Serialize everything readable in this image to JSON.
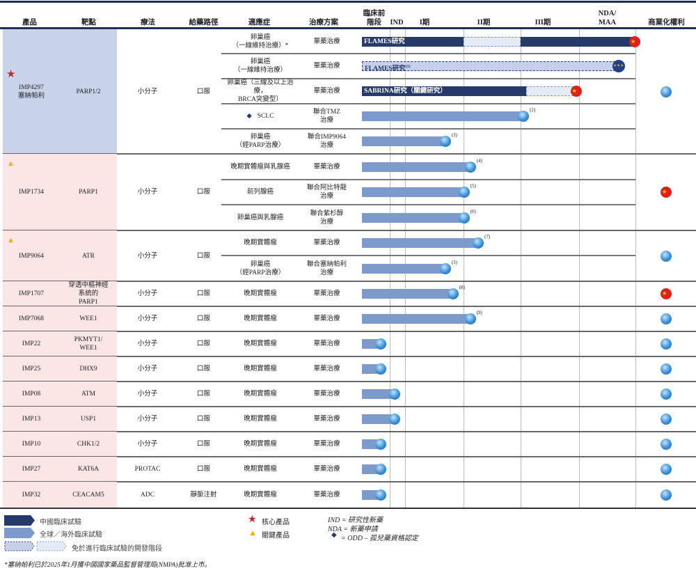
{
  "header": {
    "product": "產品",
    "target": "靶點",
    "modality": "療法",
    "route": "給藥路徑",
    "indication": "適應症",
    "regimen": "治療方案",
    "preclinical": "臨床前\n階段",
    "ind": "IND",
    "p1": "I期",
    "p2": "II期",
    "p3": "III期",
    "nda": "NDA/\nMAA",
    "commercial": "商業化權利"
  },
  "phases": [
    "臨床前階段",
    "IND",
    "I期",
    "II期",
    "III期",
    "NDA/MAA"
  ],
  "colors": {
    "china_trial": "#253a6b",
    "global_trial": "#7c9acb",
    "waived_dark": "#c6d0ea",
    "waived_light": "#e4ebf6",
    "core_star": "#c0262d",
    "key_triangle": "#f2b300",
    "product_bg_core": "#c8d3ea",
    "product_bg_other": "#fbe5e5"
  },
  "products": [
    {
      "name": "IMP4297\n塞納帕利",
      "marker": "star",
      "target": "PARP1/2",
      "modality": "小分子",
      "route": "口服",
      "commercial": "globe",
      "rows": [
        0,
        1,
        2,
        3,
        4
      ]
    },
    {
      "name": "IMP1734",
      "marker": "triangle",
      "target": "PARP1",
      "modality": "小分子",
      "route": "口服",
      "commercial": "china",
      "rows": [
        5,
        6,
        7
      ]
    },
    {
      "name": "IMP9064",
      "marker": "triangle",
      "target": "ATR",
      "modality": "小分子",
      "route": "口服",
      "commercial": "globe",
      "rows": [
        8,
        9
      ]
    },
    {
      "name": "IMP1707",
      "target": "穿透中樞神經\n系統的\nPARP1",
      "modality": "小分子",
      "route": "口服",
      "commercial": "china",
      "rows": [
        10
      ]
    },
    {
      "name": "IMP7068",
      "target": "WEE1",
      "modality": "小分子",
      "route": "口服",
      "commercial": "globe",
      "rows": [
        11
      ]
    },
    {
      "name": "IMP22",
      "target": "PKMYT1/\nWEE1",
      "modality": "小分子",
      "route": "口服",
      "commercial": "globe",
      "rows": [
        12
      ]
    },
    {
      "name": "IMP25",
      "target": "DHX9",
      "modality": "小分子",
      "route": "口服",
      "commercial": "globe",
      "rows": [
        13
      ]
    },
    {
      "name": "IMP08",
      "target": "ATM",
      "modality": "小分子",
      "route": "口服",
      "commercial": "globe",
      "rows": [
        14
      ]
    },
    {
      "name": "IMP13",
      "target": "USP1",
      "modality": "小分子",
      "route": "口服",
      "commercial": "globe",
      "rows": [
        15
      ]
    },
    {
      "name": "IMP10",
      "target": "CHK1/2",
      "modality": "小分子",
      "route": "口服",
      "commercial": "globe",
      "rows": [
        16
      ]
    },
    {
      "name": "IMP27",
      "target": "KAT6A",
      "modality": "PROTAC",
      "route": "口服",
      "commercial": "globe",
      "rows": [
        17
      ]
    },
    {
      "name": "IMP32",
      "target": "CEACAM5",
      "modality": "ADC",
      "route": "靜脈注射",
      "commercial": "globe",
      "rows": [
        18
      ]
    }
  ],
  "rows": [
    {
      "indication": "卵巢癌\n（一線維持治療）*",
      "regimen": "單藥治療",
      "segments": [
        {
          "type": "china",
          "from": 0,
          "to": 3,
          "label": "FLAMES研究"
        },
        {
          "type": "waived_light",
          "from": 3,
          "to": 4
        },
        {
          "type": "china",
          "from": 4,
          "to": 6
        }
      ],
      "end_icon": "china"
    },
    {
      "indication": "卵巢癌\n（一線維持治療）",
      "regimen": "單藥治療",
      "segments": [
        {
          "type": "waived_dark",
          "from": 0,
          "to": 5.7,
          "label": "FLAMES研究",
          "note": "(1)"
        }
      ],
      "end_icon": "eu"
    },
    {
      "indication": "卵巢癌（三線及以上治療，\nBRCA突變型）",
      "regimen": "單藥治療",
      "segments": [
        {
          "type": "china",
          "from": 0,
          "to": 4.1,
          "label": "SABRINA研究（關鍵研究）"
        },
        {
          "type": "waived_light",
          "from": 4.1,
          "to": 4.96
        }
      ],
      "end_icon": "china"
    },
    {
      "indication": "SCLC",
      "odd": true,
      "regimen": "聯合TMZ\n治療",
      "segments": [
        {
          "type": "global",
          "from": 0,
          "to": 4.06
        }
      ],
      "end_icon": "globe",
      "note": "(2)"
    },
    {
      "indication": "卵巢癌\n（經PARP治療）",
      "regimen": "聯合IMP9064\n治療",
      "segments": [
        {
          "type": "global",
          "from": 0,
          "to": 2.7
        }
      ],
      "end_icon": "globe",
      "note": "(3)"
    },
    {
      "indication": "晚期實體瘤與乳腺癌",
      "regimen": "單藥治療",
      "segments": [
        {
          "type": "global",
          "from": 0,
          "to": 3.13
        }
      ],
      "end_icon": "globe",
      "note": "(4)"
    },
    {
      "indication": "前列腺癌",
      "regimen": "聯合阿比特龍\n治療",
      "segments": [
        {
          "type": "global",
          "from": 0,
          "to": 3.02
        }
      ],
      "end_icon": "globe",
      "note": "(5)"
    },
    {
      "indication": "卵巢癌與乳腺癌",
      "regimen": "聯合紫杉醇\n治療",
      "segments": [
        {
          "type": "global",
          "from": 0,
          "to": 3.02
        }
      ],
      "end_icon": "globe",
      "note": "(6)"
    },
    {
      "indication": "晚期實體瘤",
      "regimen": "單藥治療",
      "segments": [
        {
          "type": "global",
          "from": 0,
          "to": 3.27
        }
      ],
      "end_icon": "globe",
      "note": "(7)"
    },
    {
      "indication": "卵巢癌\n（經PARP治療）",
      "regimen": "聯合塞納帕利\n治療",
      "segments": [
        {
          "type": "global",
          "from": 0,
          "to": 2.7
        }
      ],
      "end_icon": "globe",
      "note": "(3)"
    },
    {
      "indication": "晚期實體瘤",
      "regimen": "單藥治療",
      "segments": [
        {
          "type": "global",
          "from": 0,
          "to": 2.83
        }
      ],
      "end_icon": "globe",
      "note": "(8)"
    },
    {
      "indication": "晚期實體瘤",
      "regimen": "單藥治療",
      "segments": [
        {
          "type": "global",
          "from": 0,
          "to": 3.13
        }
      ],
      "end_icon": "globe",
      "note": "(9)"
    },
    {
      "indication": "晚期實體瘤",
      "regimen": "單藥治療",
      "segments": [
        {
          "type": "global",
          "from": 0,
          "to": 0.71
        }
      ],
      "end_icon": "globe"
    },
    {
      "indication": "晚期實體瘤",
      "regimen": "單藥治療",
      "segments": [
        {
          "type": "global",
          "from": 0,
          "to": 0.71
        }
      ],
      "end_icon": "globe"
    },
    {
      "indication": "晚期實體瘤",
      "regimen": "單藥治療",
      "segments": [
        {
          "type": "global",
          "from": 0,
          "to": 1.36
        }
      ],
      "end_icon": "globe"
    },
    {
      "indication": "晚期實體瘤",
      "regimen": "單藥治療",
      "segments": [
        {
          "type": "global",
          "from": 0,
          "to": 1.36
        }
      ],
      "end_icon": "globe"
    },
    {
      "indication": "晚期實體瘤",
      "regimen": "單藥治療",
      "segments": [
        {
          "type": "global",
          "from": 0,
          "to": 0.71
        }
      ],
      "end_icon": "globe"
    },
    {
      "indication": "晚期實體瘤",
      "regimen": "單藥治療",
      "segments": [
        {
          "type": "global",
          "from": 0,
          "to": 0.71
        }
      ],
      "end_icon": "globe"
    },
    {
      "indication": "晚期實體瘤",
      "regimen": "單藥治療",
      "segments": [
        {
          "type": "global",
          "from": 0,
          "to": 0.71
        }
      ],
      "end_icon": "globe"
    }
  ],
  "legend": {
    "china": "中國臨床試驗",
    "global": "全球／海外臨床試驗",
    "waived": "免於進行臨床試驗的開發階段",
    "core": "核心產品",
    "key": "關鍵產品",
    "ind_def": "IND = 研究性新藥",
    "nda_def": "NDA = 新藥申請",
    "odd_def": "= ODD – 孤兒藥資格認定"
  },
  "footnote": "*塞納帕利已於2025年1月獲中國國家藥品監督管理局(NMPA)批准上市。"
}
